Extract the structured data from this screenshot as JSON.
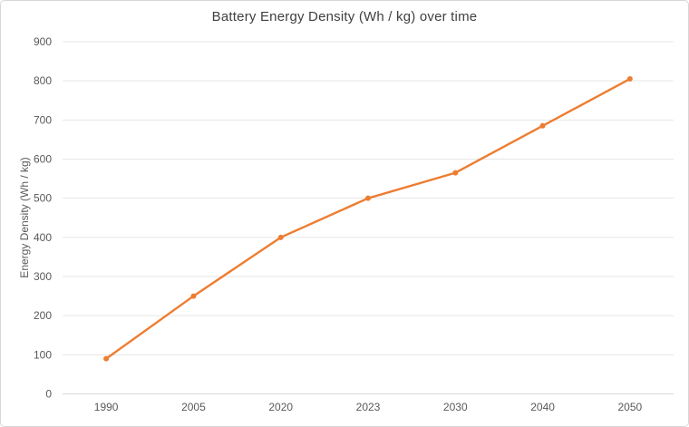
{
  "chart_data": {
    "type": "line",
    "title": "Battery Energy Density (Wh / kg) over time",
    "xlabel": "",
    "ylabel": "Energy Density (Wh / kg)",
    "categories": [
      "1990",
      "2005",
      "2020",
      "2023",
      "2030",
      "2040",
      "2050"
    ],
    "values": [
      90,
      250,
      400,
      500,
      565,
      685,
      805
    ],
    "ylim": [
      0,
      900
    ],
    "yticks": [
      0,
      100,
      200,
      300,
      400,
      500,
      600,
      700,
      800,
      900
    ],
    "grid": true,
    "legend": false,
    "marker": "circle"
  },
  "colors": {
    "line": "#ED7D31",
    "marker": "#ED7D31",
    "gridline": "#E6E6E6",
    "axis_line": "#D9D9D9",
    "tick_label": "#595959",
    "title": "#404040",
    "border": "#D7D7D7",
    "background": "#FFFFFF"
  }
}
